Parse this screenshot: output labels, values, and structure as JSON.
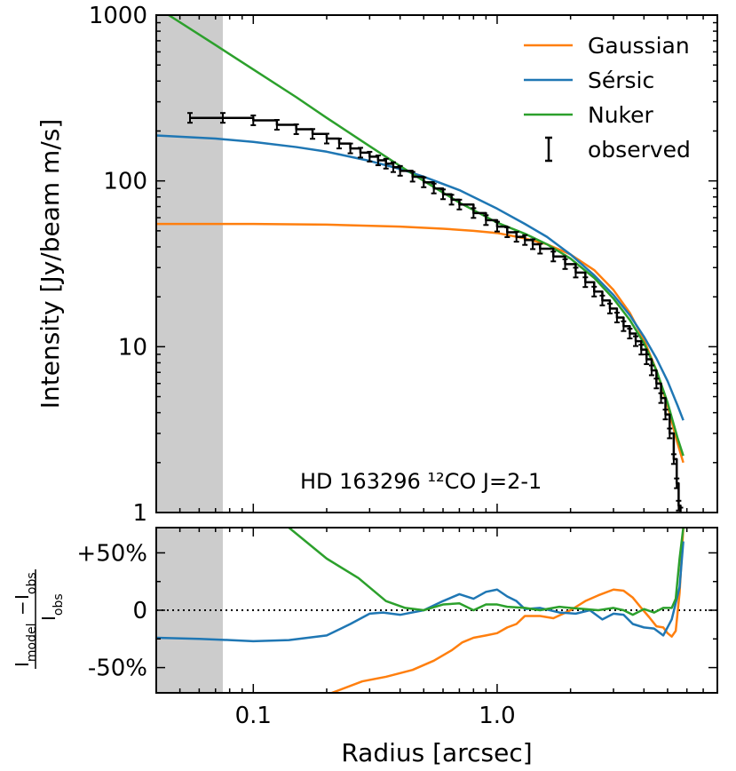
{
  "chart_data": [
    {
      "type": "line",
      "panel": "profile",
      "ylabel": "Intensity [Jy/beam m/s]",
      "yscale": "log",
      "xscale": "log",
      "xlim": [
        0.04,
        8.0
      ],
      "ylim": [
        1,
        1000
      ],
      "y_ticks": [
        1,
        10,
        100,
        1000
      ],
      "y_tick_labels": [
        "1",
        "10",
        "100",
        "1000"
      ],
      "annotation": "HD 163296 ¹²CO J=2-1",
      "shaded_region": [
        0.04,
        0.075
      ],
      "legend": {
        "placement": "top-right",
        "entries": [
          "Gaussian",
          "Sérsic",
          "Nuker",
          "observed"
        ]
      },
      "series": [
        {
          "name": "Gaussian",
          "color": "#ff7f0e",
          "x": [
            0.04,
            0.1,
            0.2,
            0.4,
            0.6,
            0.8,
            1.0,
            1.3,
            1.6,
            2.0,
            2.5,
            3.0,
            3.5,
            4.0,
            4.5,
            5.0,
            5.5,
            5.8
          ],
          "y": [
            55,
            55,
            54.5,
            53,
            51.5,
            50,
            48.5,
            45,
            41.5,
            36,
            29,
            22,
            16,
            11,
            7.2,
            4.4,
            2.6,
            2.0
          ]
        },
        {
          "name": "Sérsic",
          "color": "#1f77b4",
          "x": [
            0.04,
            0.07,
            0.1,
            0.15,
            0.2,
            0.3,
            0.4,
            0.5,
            0.7,
            1.0,
            1.3,
            1.6,
            2.0,
            2.5,
            3.0,
            3.5,
            4.0,
            4.5,
            5.0,
            5.5,
            5.8
          ],
          "y": [
            188,
            180,
            172,
            160,
            150,
            132,
            118,
            106,
            88,
            68,
            55,
            46,
            36,
            27,
            20.5,
            15.5,
            11.5,
            8.5,
            6.2,
            4.4,
            3.6
          ]
        },
        {
          "name": "Nuker",
          "color": "#2ca02c",
          "x": [
            0.045,
            0.07,
            0.1,
            0.15,
            0.2,
            0.3,
            0.4,
            0.5,
            0.7,
            1.0,
            1.3,
            1.6,
            2.0,
            2.5,
            3.0,
            3.5,
            4.0,
            4.5,
            5.0,
            5.5,
            5.8
          ],
          "y": [
            1000,
            660,
            470,
            320,
            240,
            162,
            123,
            100,
            74,
            56,
            48,
            41.5,
            34,
            26,
            19.5,
            14.5,
            10.5,
            7.2,
            4.6,
            2.8,
            2.2
          ]
        },
        {
          "name": "observed",
          "color": "#000000",
          "style": "step",
          "x": [
            0.055,
            0.075,
            0.1,
            0.125,
            0.15,
            0.175,
            0.2,
            0.225,
            0.25,
            0.275,
            0.3,
            0.325,
            0.35,
            0.375,
            0.4,
            0.45,
            0.5,
            0.55,
            0.6,
            0.65,
            0.7,
            0.8,
            0.9,
            1.0,
            1.1,
            1.2,
            1.3,
            1.4,
            1.5,
            1.7,
            1.9,
            2.1,
            2.3,
            2.5,
            2.7,
            2.9,
            3.1,
            3.3,
            3.5,
            3.7,
            3.9,
            4.1,
            4.3,
            4.5,
            4.7,
            4.9,
            5.1,
            5.3,
            5.45,
            5.55,
            5.65
          ],
          "y": [
            240,
            240,
            232,
            218,
            205,
            192,
            180,
            168,
            157,
            148,
            140,
            133,
            127,
            121,
            115,
            106,
            98,
            90,
            83,
            77,
            72,
            64,
            58,
            53,
            49,
            46,
            44,
            41.5,
            39,
            35,
            31.5,
            28,
            24.5,
            21.5,
            19,
            17,
            15,
            13.3,
            12,
            10.8,
            9.6,
            8.4,
            7.2,
            6.0,
            4.9,
            3.9,
            3.0,
            2.1,
            1.5,
            1.1,
            1.0
          ]
        }
      ]
    },
    {
      "type": "line",
      "panel": "residual",
      "xlabel": "Radius [arcsec]",
      "ylabel": "(I_model − I_obs) / I_obs",
      "xscale": "log",
      "xlim": [
        0.04,
        8.0
      ],
      "ylim": [
        -72,
        72
      ],
      "x_ticks": [
        0.1,
        1.0
      ],
      "x_tick_labels": [
        "0.1",
        "1.0"
      ],
      "y_ticks": [
        50,
        0,
        -50
      ],
      "y_tick_labels": [
        "+50%",
        "0",
        "-50%"
      ],
      "reference_line": 0,
      "shaded_region": [
        0.04,
        0.075
      ],
      "series": [
        {
          "name": "Gaussian",
          "color": "#ff7f0e",
          "x": [
            0.21,
            0.28,
            0.35,
            0.45,
            0.55,
            0.65,
            0.72,
            0.8,
            0.9,
            1.0,
            1.1,
            1.2,
            1.3,
            1.5,
            1.7,
            2.0,
            2.3,
            2.6,
            3.0,
            3.3,
            3.6,
            3.9,
            4.2,
            4.5,
            4.8,
            5.0,
            5.2,
            5.4,
            5.6,
            5.8
          ],
          "y": [
            -72,
            -62,
            -58,
            -52,
            -44,
            -35,
            -28,
            -24,
            -22,
            -20,
            -15,
            -12,
            -5,
            -5,
            -7,
            0,
            8,
            13,
            18,
            17,
            11,
            2,
            -6,
            -14,
            -15,
            -20,
            -23,
            -18,
            15,
            72
          ]
        },
        {
          "name": "Sérsic",
          "color": "#1f77b4",
          "x": [
            0.04,
            0.06,
            0.08,
            0.1,
            0.14,
            0.2,
            0.25,
            0.3,
            0.34,
            0.4,
            0.5,
            0.6,
            0.7,
            0.8,
            0.9,
            1.0,
            1.1,
            1.2,
            1.3,
            1.5,
            1.8,
            2.1,
            2.4,
            2.7,
            3.0,
            3.3,
            3.6,
            4.0,
            4.4,
            4.8,
            5.2,
            5.6,
            5.8
          ],
          "y": [
            -24,
            -25,
            -26,
            -27,
            -26,
            -22,
            -12,
            -3,
            -2,
            -4,
            0,
            8,
            14,
            10,
            16,
            18,
            12,
            8,
            1,
            2,
            -2,
            -3,
            0,
            -8,
            -3,
            -4,
            -12,
            -15,
            -16,
            -22,
            -8,
            20,
            60
          ]
        },
        {
          "name": "Nuker",
          "color": "#2ca02c",
          "x": [
            0.14,
            0.2,
            0.27,
            0.35,
            0.42,
            0.5,
            0.6,
            0.7,
            0.8,
            0.9,
            1.0,
            1.1,
            1.3,
            1.5,
            1.8,
            2.0,
            2.3,
            2.6,
            3.0,
            3.3,
            3.6,
            4.0,
            4.4,
            4.8,
            5.2,
            5.4,
            5.6,
            5.8
          ],
          "y": [
            72,
            45,
            28,
            8,
            2,
            0,
            5,
            6,
            0,
            5,
            5,
            3,
            2,
            0,
            3,
            2,
            1,
            0,
            2,
            0,
            -4,
            1,
            -2,
            2,
            2,
            10,
            45,
            72
          ]
        }
      ]
    }
  ]
}
